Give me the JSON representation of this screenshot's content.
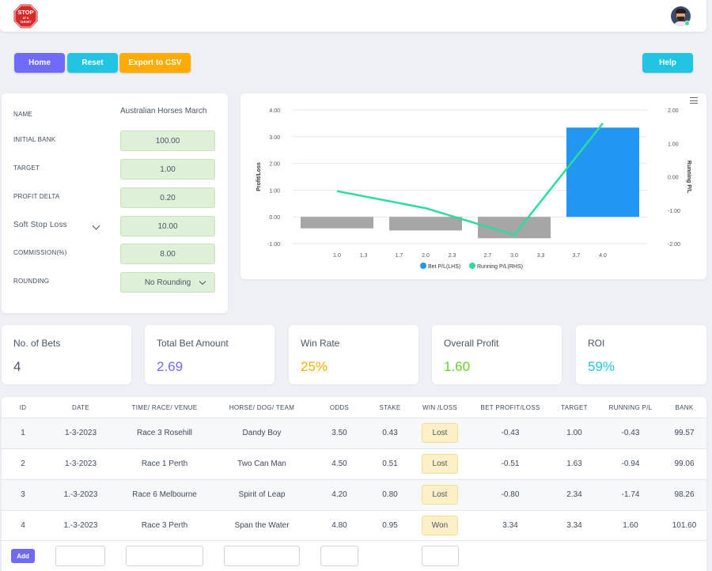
{
  "header": {
    "logo_text": "STOP AT A TARGET",
    "logo_color": "#d62a2a"
  },
  "toolbar": {
    "home": "Home",
    "reset": "Reset",
    "export": "Export to CSV",
    "help": "Help"
  },
  "settings": {
    "name_label": "NAME",
    "name_value": "Australian Horses March",
    "initial_bank_label": "INITIAL BANK",
    "initial_bank": "100.00",
    "target_label": "TARGET",
    "target": "1.00",
    "profit_delta_label": "PROFIT DELTA",
    "profit_delta": "0.20",
    "stop_loss_mode": "Soft Stop Loss",
    "stop_loss": "10.00",
    "commission_label": "COMMISSION(%)",
    "commission": "8.00",
    "rounding_label": "ROUNDING",
    "rounding": "No Rounding"
  },
  "chart_data": {
    "type": "bar+line",
    "ylabel": "Profit/Loss",
    "y2label": "Running P/L",
    "ylim": [
      -1.0,
      4.0
    ],
    "y_ticks": [
      "4.00",
      "3.00",
      "2.00",
      "1.00",
      "0.00",
      "-1.00"
    ],
    "y2lim": [
      -2.0,
      2.0
    ],
    "y2_ticks": [
      "2.00",
      "1.00",
      "0.00",
      "-1.00",
      "-2.00"
    ],
    "x_ticks": [
      "1.0",
      "1.3",
      "1.7",
      "2.0",
      "2.3",
      "2.7",
      "3.0",
      "3.3",
      "3.7",
      "4.0"
    ],
    "series": [
      {
        "name": "Bet P/L(LHS)",
        "type": "bar",
        "color": "#2196f3",
        "x": [
          1,
          2,
          3,
          4
        ],
        "values": [
          -0.43,
          -0.51,
          -0.8,
          3.34
        ],
        "colors": [
          "#a6a6a6",
          "#a6a6a6",
          "#a6a6a6",
          "#2196f3"
        ]
      },
      {
        "name": "Running P/L(RHS)",
        "type": "line",
        "color": "#2bdba0",
        "x": [
          1,
          2,
          3,
          4
        ],
        "values": [
          -0.43,
          -0.94,
          -1.74,
          1.6
        ]
      }
    ],
    "legend_position": "bottom"
  },
  "stats": [
    {
      "label": "No. of Bets",
      "value": "4",
      "color": "#4a5568"
    },
    {
      "label": "Total Bet Amount",
      "value": "2.69",
      "color": "#6f6af8"
    },
    {
      "label": "Win Rate",
      "value": "25%",
      "color": "#ffab00"
    },
    {
      "label": "Overall Profit",
      "value": "1.60",
      "color": "#66d12a"
    },
    {
      "label": "ROI",
      "value": "59%",
      "color": "#22c4e3"
    }
  ],
  "table": {
    "columns": [
      "ID",
      "DATE",
      "TIME/ RACE/ VENUE",
      "HORSE/ DOG/ TEAM",
      "ODDS",
      "STAKE",
      "WIN /LOSS",
      "BET PROFIT/LOSS",
      "TARGET",
      "RUNNING P/L",
      "BANK"
    ],
    "rows": [
      [
        "1",
        "1-3-2023",
        "Race 3 Rosehill",
        "Dandy Boy",
        "3.50",
        "0.43",
        "Lost",
        "-0.43",
        "1.00",
        "-0.43",
        "99.57"
      ],
      [
        "2",
        "1-3-2023",
        "Race 1 Perth",
        "Two Can Man",
        "4.50",
        "0.51",
        "Lost",
        "-0.51",
        "1.63",
        "-0.94",
        "99.06"
      ],
      [
        "3",
        "1.-3-2023",
        "Race 6 Melbourne",
        "Spirit of Leap",
        "4.20",
        "0.80",
        "Lost",
        "-0.80",
        "2.34",
        "-1.74",
        "98.26"
      ],
      [
        "4",
        "1.-3-2023",
        "Race 3 Perth",
        "Span the Water",
        "4.80",
        "0.95",
        "Won",
        "3.34",
        "3.34",
        "1.60",
        "101.60"
      ]
    ],
    "add_label": "Add"
  }
}
